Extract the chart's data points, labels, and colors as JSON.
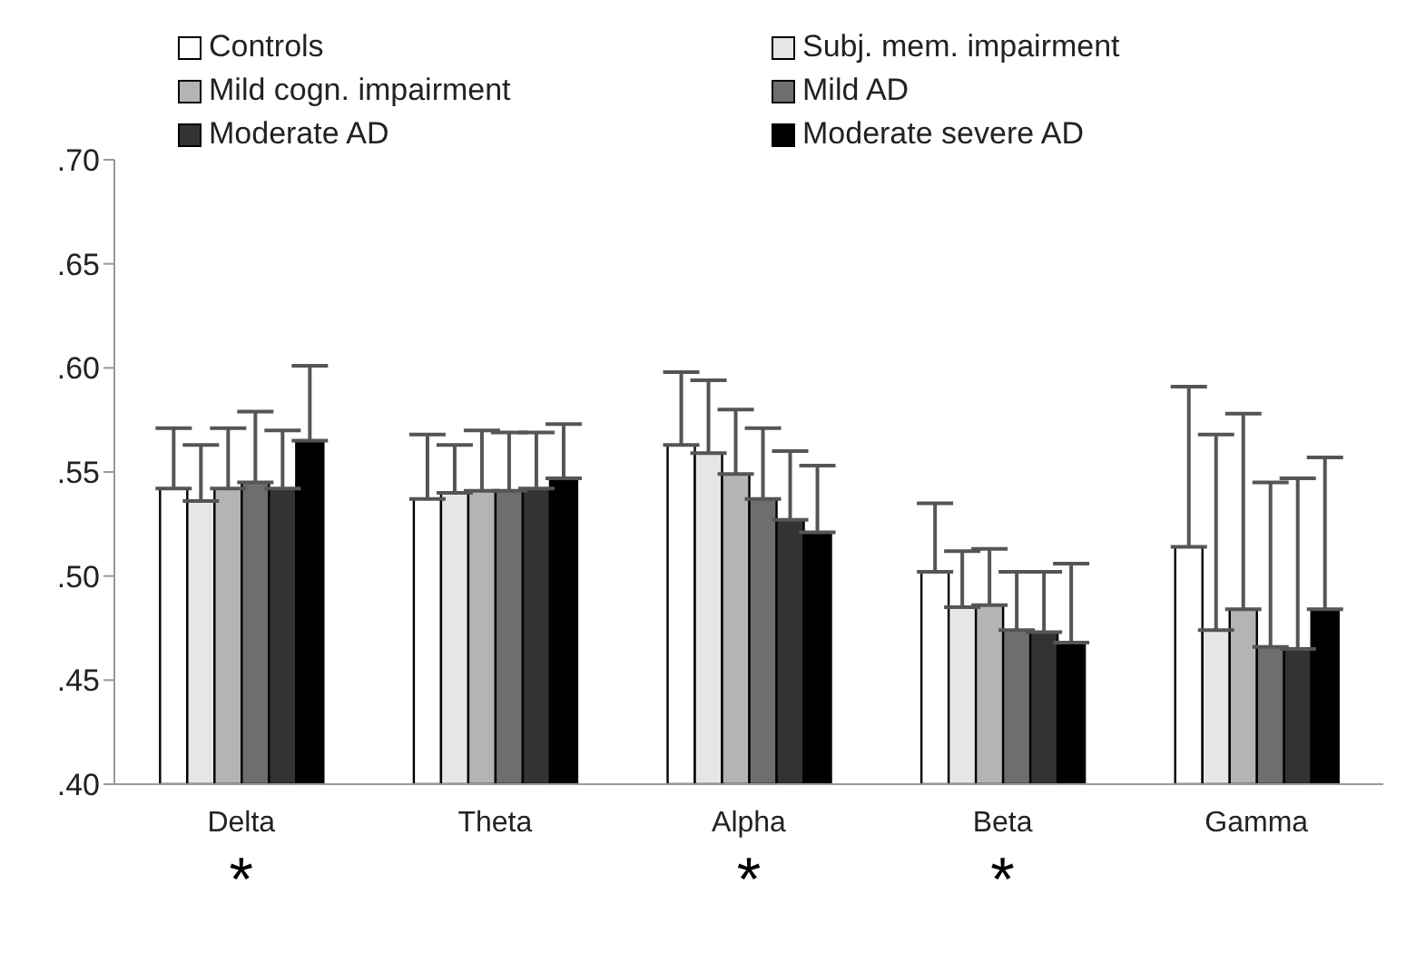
{
  "chart_data": {
    "type": "bar",
    "categories": [
      "Delta",
      "Theta",
      "Alpha",
      "Beta",
      "Gamma"
    ],
    "series": [
      {
        "name": "Controls",
        "color": "#ffffff",
        "values": [
          0.542,
          0.537,
          0.563,
          0.502,
          0.514
        ],
        "errors": [
          [
            0.542,
            0.571
          ],
          [
            0.537,
            0.568
          ],
          [
            0.563,
            0.598
          ],
          [
            0.502,
            0.535
          ],
          [
            0.514,
            0.591
          ]
        ]
      },
      {
        "name": "Subj. mem. impairment",
        "color": "#e6e6e6",
        "values": [
          0.536,
          0.54,
          0.559,
          0.485,
          0.474
        ],
        "errors": [
          [
            0.536,
            0.563
          ],
          [
            0.54,
            0.563
          ],
          [
            0.559,
            0.594
          ],
          [
            0.485,
            0.512
          ],
          [
            0.474,
            0.568
          ]
        ]
      },
      {
        "name": "Mild cogn. impairment",
        "color": "#b4b4b4",
        "values": [
          0.542,
          0.541,
          0.549,
          0.486,
          0.484
        ],
        "errors": [
          [
            0.542,
            0.571
          ],
          [
            0.541,
            0.57
          ],
          [
            0.549,
            0.58
          ],
          [
            0.486,
            0.513
          ],
          [
            0.484,
            0.578
          ]
        ]
      },
      {
        "name": "Mild AD",
        "color": "#6e6e6e",
        "values": [
          0.545,
          0.541,
          0.537,
          0.474,
          0.466
        ],
        "errors": [
          [
            0.545,
            0.579
          ],
          [
            0.541,
            0.569
          ],
          [
            0.537,
            0.571
          ],
          [
            0.474,
            0.502
          ],
          [
            0.466,
            0.545
          ]
        ]
      },
      {
        "name": "Moderate AD",
        "color": "#333333",
        "values": [
          0.542,
          0.542,
          0.527,
          0.473,
          0.465
        ],
        "errors": [
          [
            0.542,
            0.57
          ],
          [
            0.542,
            0.569
          ],
          [
            0.527,
            0.56
          ],
          [
            0.473,
            0.502
          ],
          [
            0.465,
            0.547
          ]
        ]
      },
      {
        "name": "Moderate severe AD",
        "color": "#000000",
        "values": [
          0.565,
          0.547,
          0.521,
          0.468,
          0.484
        ],
        "errors": [
          [
            0.565,
            0.601
          ],
          [
            0.547,
            0.573
          ],
          [
            0.521,
            0.553
          ],
          [
            0.468,
            0.506
          ],
          [
            0.484,
            0.557
          ]
        ]
      }
    ],
    "ylim": [
      0.4,
      0.7
    ],
    "yticks": [
      {
        "value": 0.4,
        "label": ".40"
      },
      {
        "value": 0.45,
        "label": ".45"
      },
      {
        "value": 0.5,
        "label": ".50"
      },
      {
        "value": 0.55,
        "label": ".55"
      },
      {
        "value": 0.6,
        "label": ".60"
      },
      {
        "value": 0.65,
        "label": ".65"
      },
      {
        "value": 0.7,
        "label": ".70"
      }
    ],
    "annotations": [
      "*",
      "*",
      "*"
    ],
    "grid": false,
    "legend": "top"
  }
}
